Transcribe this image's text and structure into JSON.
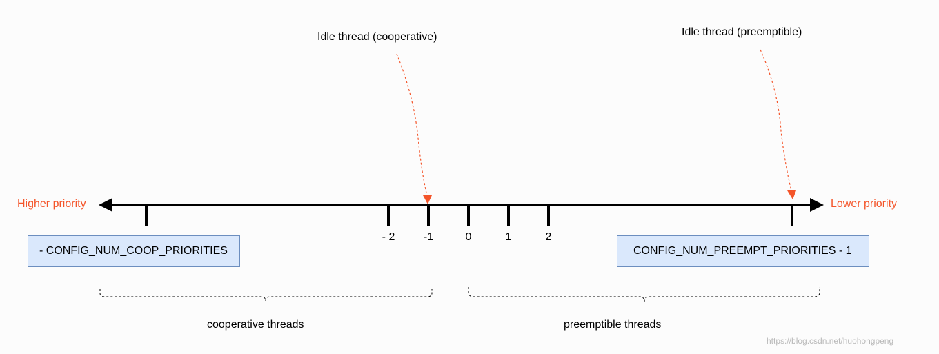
{
  "colors": {
    "axis": "#000000",
    "accent": "#f4552a",
    "box_fill": "#dae8fc",
    "box_border": "#6c8ebf",
    "watermark": "#b9b9b9"
  },
  "axis": {
    "left_label": "Higher priority",
    "right_label": "Lower priority"
  },
  "ticks": [
    {
      "id": "tick-min-coop",
      "label": ""
    },
    {
      "id": "tick-neg2",
      "label": "- 2"
    },
    {
      "id": "tick-neg1",
      "label": "-1"
    },
    {
      "id": "tick-0",
      "label": "0"
    },
    {
      "id": "tick-1",
      "label": "1"
    },
    {
      "id": "tick-2",
      "label": "2"
    },
    {
      "id": "tick-max-preempt",
      "label": ""
    }
  ],
  "boxes": {
    "coop": "- CONFIG_NUM_COOP_PRIORITIES",
    "preempt": "CONFIG_NUM_PREEMPT_PRIORITIES - 1"
  },
  "callouts": {
    "idle_coop": "Idle thread (cooperative)",
    "idle_preempt": "Idle thread (preemptible)"
  },
  "ranges": {
    "coop": "cooperative threads",
    "preempt": "preemptible threads"
  },
  "watermark": "https://blog.csdn.net/huohongpeng"
}
